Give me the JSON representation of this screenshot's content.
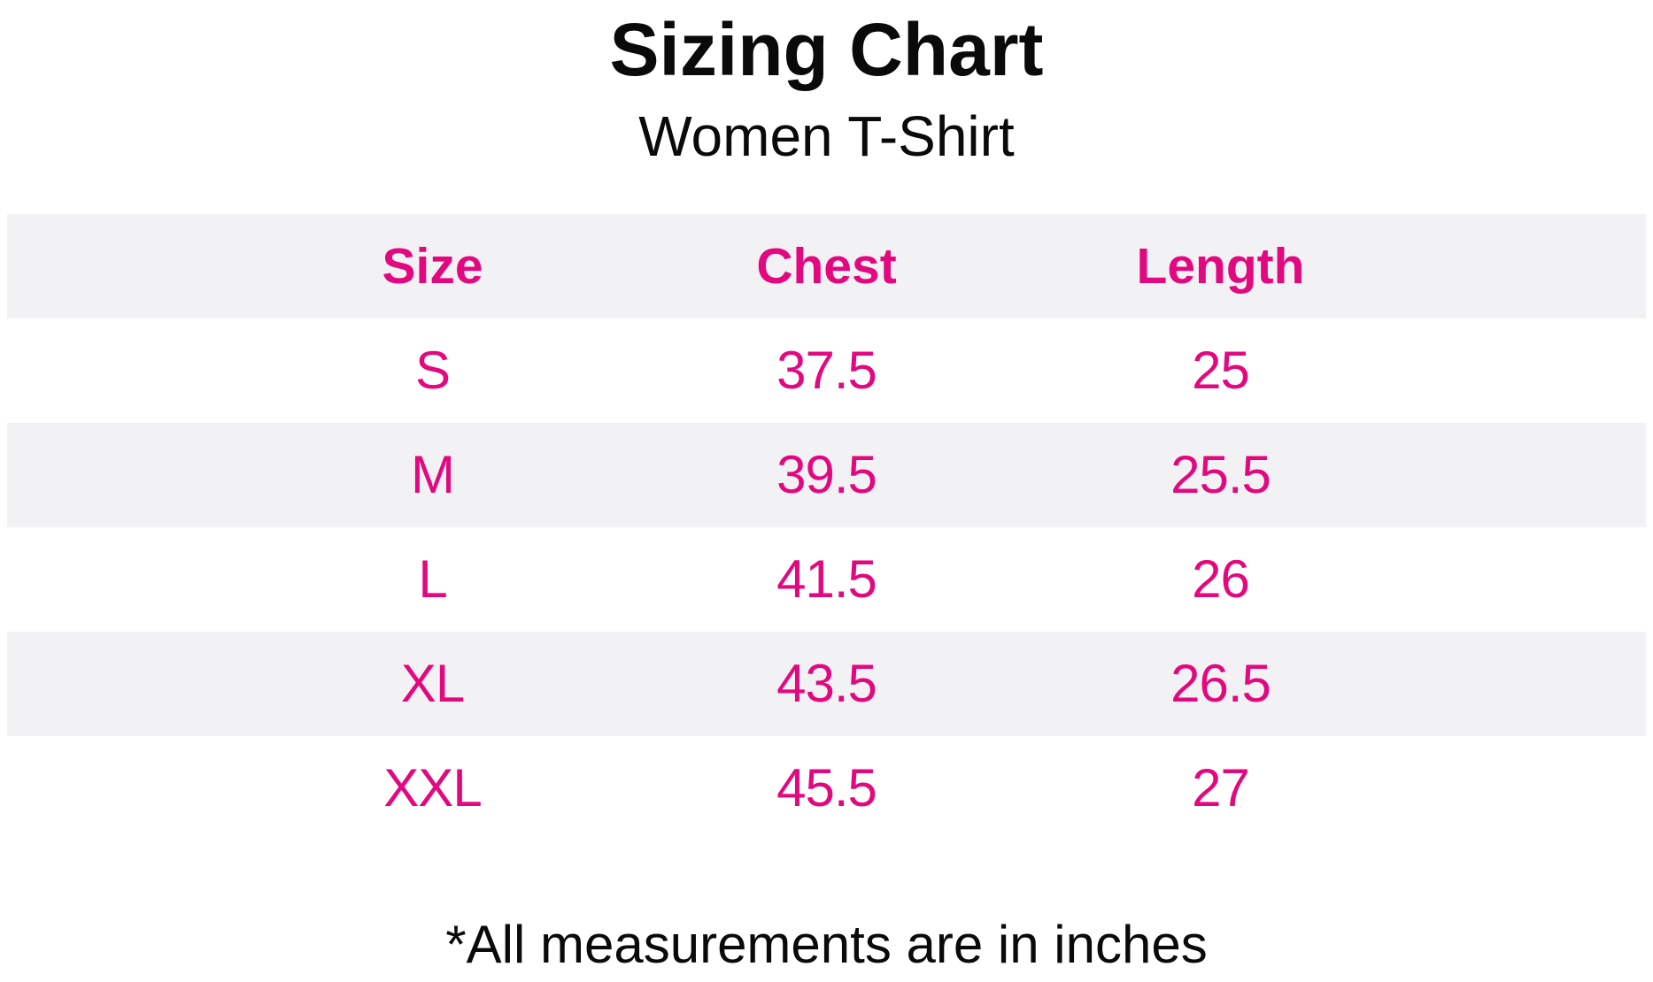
{
  "title": "Sizing Chart",
  "subtitle": "Women T-Shirt",
  "footnote": "*All measurements are in inches",
  "colors": {
    "accent_pink": "#e2087f",
    "stripe_gray": "#f2f2f4",
    "text_black": "#0a0a0a",
    "background": "#ffffff"
  },
  "table": {
    "headers": [
      "Size",
      "Chest",
      "Length"
    ],
    "rows": [
      {
        "size": "S",
        "chest": "37.5",
        "length": "25"
      },
      {
        "size": "M",
        "chest": "39.5",
        "length": "25.5"
      },
      {
        "size": "L",
        "chest": "41.5",
        "length": "26"
      },
      {
        "size": "XL",
        "chest": "43.5",
        "length": "26.5"
      },
      {
        "size": "XXL",
        "chest": "45.5",
        "length": "27"
      }
    ]
  },
  "chart_data": {
    "type": "table",
    "title": "Sizing Chart",
    "subtitle": "Women T-Shirt",
    "columns": [
      "Size",
      "Chest",
      "Length"
    ],
    "rows": [
      [
        "S",
        37.5,
        25
      ],
      [
        "M",
        39.5,
        25.5
      ],
      [
        "L",
        41.5,
        26
      ],
      [
        "XL",
        43.5,
        26.5
      ],
      [
        "XXL",
        45.5,
        27
      ]
    ],
    "footnote": "*All measurements are in inches",
    "units": "inches",
    "layout_hints": {
      "striped_rows": true,
      "header_background": "#f2f2f4",
      "value_color": "#e2087f",
      "grid": false
    }
  }
}
